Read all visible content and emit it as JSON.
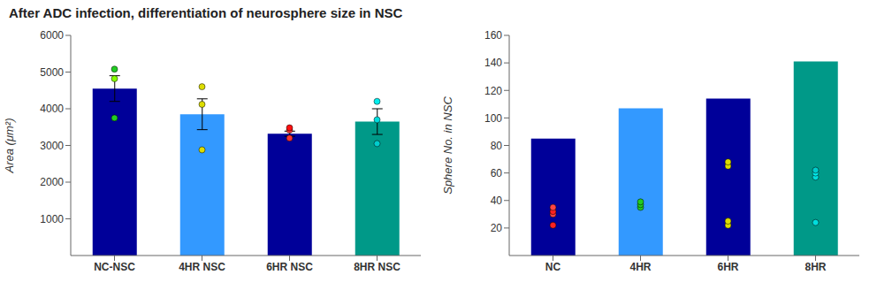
{
  "chart_data": [
    {
      "type": "bar",
      "title": "After ADC infection, differentiation of neurosphere size in NSC",
      "categories": [
        "NC-NSC",
        "4HR NSC",
        "6HR NSC",
        "8HR NSC"
      ],
      "values": [
        4550,
        3850,
        3320,
        3650
      ],
      "colors": [
        "#000099",
        "#3399FF",
        "#000099",
        "#009988"
      ],
      "error_bars": [
        350,
        420,
        70,
        350
      ],
      "points": [
        {
          "y": [
            3750,
            4820,
            5080
          ],
          "colors": [
            "#22CC22",
            "#88FF00",
            "#22CC22"
          ]
        },
        {
          "y": [
            2880,
            4120,
            4600
          ],
          "colors": [
            "#DDDD00",
            "#DDDD00",
            "#DDDD00"
          ]
        },
        {
          "y": [
            3200,
            3420,
            3480
          ],
          "colors": [
            "#FF3333",
            "#FF3333",
            "#FF1111"
          ]
        },
        {
          "y": [
            3050,
            3700,
            4200
          ],
          "colors": [
            "#00CCCC",
            "#00DDDD",
            "#00EEEE"
          ]
        }
      ],
      "ylabel": "Area (μm²)",
      "ylim": [
        0,
        6000
      ],
      "yticks": [
        1000,
        2000,
        3000,
        4000,
        5000,
        6000
      ]
    },
    {
      "type": "bar",
      "categories": [
        "NC",
        "4HR",
        "6HR",
        "8HR"
      ],
      "values": [
        85,
        107,
        114,
        141
      ],
      "colors": [
        "#000099",
        "#3399FF",
        "#000099",
        "#009988"
      ],
      "points": [
        {
          "y": [
            22,
            30,
            32,
            35
          ],
          "colors": [
            "#FF2222",
            "#FF4444",
            "#FF2222",
            "#FF4444"
          ]
        },
        {
          "y": [
            35,
            37,
            39
          ],
          "colors": [
            "#22CC22",
            "#22CC22",
            "#22CC22"
          ]
        },
        {
          "y": [
            22,
            25,
            65,
            68
          ],
          "colors": [
            "#DDDD00",
            "#DDDD00",
            "#DDDD00",
            "#DDDD00"
          ]
        },
        {
          "y": [
            24,
            57,
            60,
            62
          ],
          "colors": [
            "#00DDDD",
            "#00DDDD",
            "#00EEEE",
            "#00CCCC"
          ]
        }
      ],
      "ylabel": "Sphere No. in NSC",
      "ylim": [
        0,
        160
      ],
      "yticks": [
        20,
        40,
        60,
        80,
        100,
        120,
        140,
        160
      ]
    }
  ]
}
